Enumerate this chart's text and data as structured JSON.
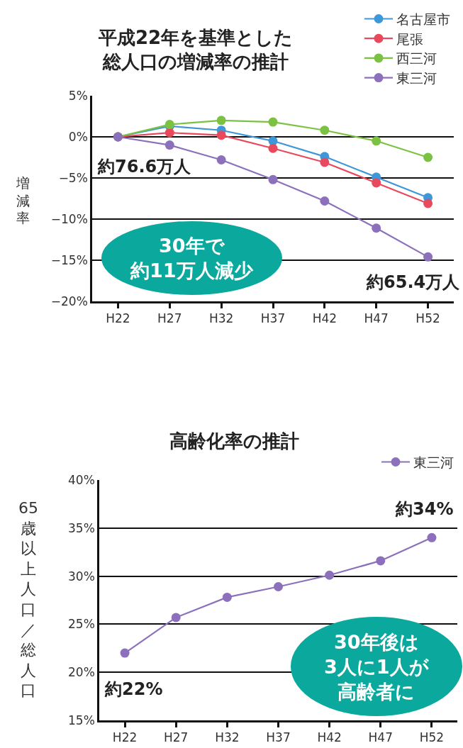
{
  "chart_data": [
    {
      "type": "line",
      "title": "平成22年を基準とした総人口の増減率の推計",
      "ylabel": "増減率",
      "categories": [
        "H22",
        "H27",
        "H32",
        "H37",
        "H42",
        "H47",
        "H52"
      ],
      "series": [
        {
          "name": "名古屋市",
          "color": "#3d97d9",
          "values": [
            0,
            1.3,
            0.8,
            -0.5,
            -2.4,
            -4.9,
            -7.4
          ]
        },
        {
          "name": "尾張",
          "color": "#e9495c",
          "values": [
            0,
            0.5,
            0.2,
            -1.4,
            -3.1,
            -5.6,
            -8.1
          ]
        },
        {
          "name": "西三河",
          "color": "#7cc242",
          "values": [
            0,
            1.5,
            2.0,
            1.8,
            0.8,
            -0.5,
            -2.5
          ]
        },
        {
          "name": "東三河",
          "color": "#8c70bc",
          "values": [
            0,
            -1.0,
            -2.8,
            -5.2,
            -7.8,
            -11.1,
            -14.6
          ]
        }
      ],
      "ylim": [
        -20,
        5
      ],
      "yticks": [
        {
          "value": 5,
          "label": "5%"
        },
        {
          "value": 0,
          "label": "0%"
        },
        {
          "value": -5,
          "label": "−5%"
        },
        {
          "value": -10,
          "label": "−10%"
        },
        {
          "value": -15,
          "label": "−15%"
        },
        {
          "value": -20,
          "label": "−20%"
        }
      ],
      "grid": "y",
      "legend": "top right",
      "marker": "circle",
      "line_style": "solid",
      "annotations": [
        "約76.6万人",
        "30年で約11万人減少",
        "約65.4万人"
      ]
    },
    {
      "type": "line",
      "title": "高齢化率の推計",
      "ylabel": "65歳以上人口／総人口",
      "categories": [
        "H22",
        "H27",
        "H32",
        "H37",
        "H42",
        "H47",
        "H52"
      ],
      "series": [
        {
          "name": "東三河",
          "color": "#8c70bc",
          "values": [
            22.0,
            25.7,
            27.8,
            28.9,
            30.1,
            31.6,
            34.0
          ]
        }
      ],
      "ylim": [
        15,
        40
      ],
      "yticks": [
        {
          "value": 15,
          "label": "15%"
        },
        {
          "value": 20,
          "label": "20%"
        },
        {
          "value": 25,
          "label": "25%"
        },
        {
          "value": 30,
          "label": "30%"
        },
        {
          "value": 35,
          "label": "35%"
        },
        {
          "value": 40,
          "label": "40%"
        }
      ],
      "grid": "y",
      "legend": "top right",
      "marker": "circle",
      "line_style": "solid",
      "annotations": [
        "約34%",
        "30年後は3人に1人が高齢者に",
        "約22%"
      ]
    }
  ]
}
